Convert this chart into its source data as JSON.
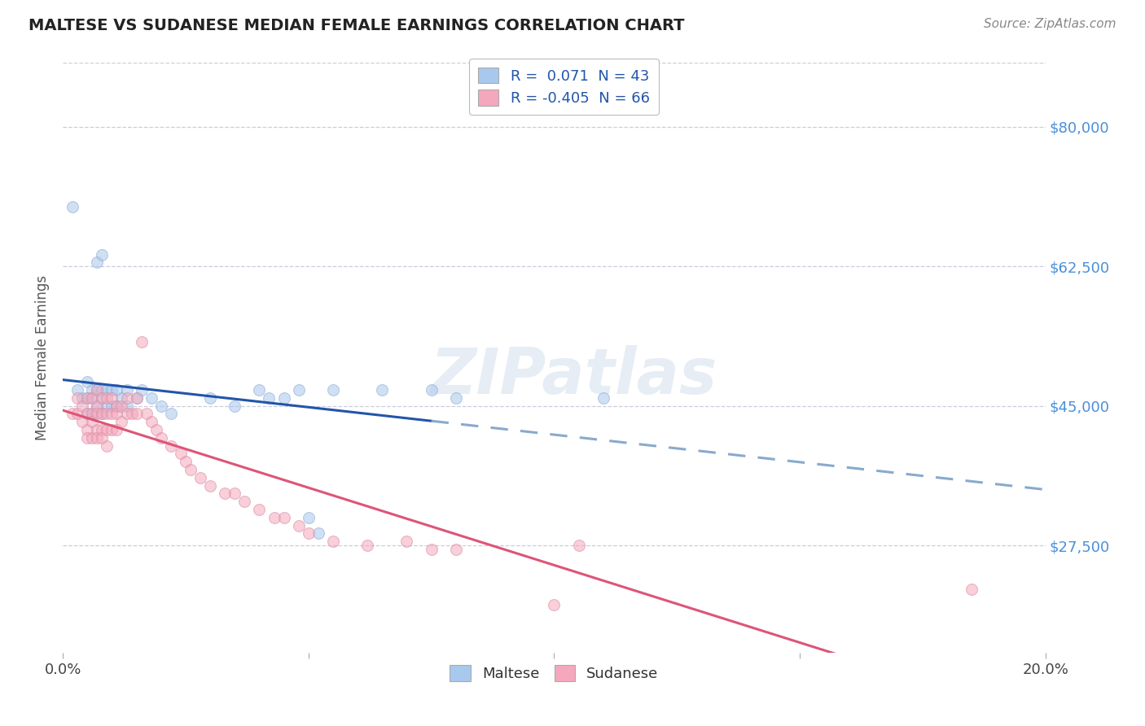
{
  "title": "MALTESE VS SUDANESE MEDIAN FEMALE EARNINGS CORRELATION CHART",
  "source": "Source: ZipAtlas.com",
  "ylabel": "Median Female Earnings",
  "xlim": [
    0.0,
    0.2
  ],
  "ylim": [
    14000,
    88000
  ],
  "yticks": [
    27500,
    45000,
    62500,
    80000
  ],
  "ytick_labels": [
    "$27,500",
    "$45,000",
    "$62,500",
    "$80,000"
  ],
  "xticks": [
    0.0,
    0.05,
    0.1,
    0.15,
    0.2
  ],
  "xtick_labels": [
    "0.0%",
    "",
    "",
    "",
    "20.0%"
  ],
  "watermark": "ZIPatlas",
  "background_color": "#ffffff",
  "grid_color": "#ccccdd",
  "ytick_color": "#4a90d9",
  "maltese_color": "#a8c8ee",
  "maltese_edge": "#88aad0",
  "sudanese_color": "#f5a8bc",
  "sudanese_edge": "#d888a0",
  "maltese_line_color": "#2255aa",
  "maltese_dash_color": "#88aacc",
  "sudanese_line_color": "#dd5577",
  "trend_linewidth": 2.2,
  "scatter_size": 100,
  "scatter_alpha": 0.55,
  "maltese_x": [
    0.002,
    0.003,
    0.004,
    0.005,
    0.005,
    0.005,
    0.006,
    0.006,
    0.006,
    0.007,
    0.007,
    0.007,
    0.008,
    0.008,
    0.008,
    0.008,
    0.009,
    0.009,
    0.01,
    0.01,
    0.011,
    0.011,
    0.012,
    0.013,
    0.013,
    0.015,
    0.016,
    0.018,
    0.02,
    0.022,
    0.03,
    0.035,
    0.04,
    0.042,
    0.045,
    0.048,
    0.05,
    0.052,
    0.055,
    0.065,
    0.075,
    0.08,
    0.11
  ],
  "maltese_y": [
    70000,
    47000,
    46000,
    48000,
    46000,
    44000,
    47000,
    46000,
    44000,
    63000,
    47000,
    45000,
    64000,
    47000,
    46000,
    44000,
    47000,
    45000,
    47000,
    45000,
    47000,
    45000,
    46000,
    47000,
    45000,
    46000,
    47000,
    46000,
    45000,
    44000,
    46000,
    45000,
    47000,
    46000,
    46000,
    47000,
    31000,
    29000,
    47000,
    47000,
    47000,
    46000,
    46000
  ],
  "sudanese_x": [
    0.002,
    0.003,
    0.003,
    0.004,
    0.004,
    0.005,
    0.005,
    0.005,
    0.005,
    0.006,
    0.006,
    0.006,
    0.006,
    0.007,
    0.007,
    0.007,
    0.007,
    0.007,
    0.008,
    0.008,
    0.008,
    0.008,
    0.009,
    0.009,
    0.009,
    0.009,
    0.01,
    0.01,
    0.01,
    0.011,
    0.011,
    0.011,
    0.012,
    0.012,
    0.013,
    0.013,
    0.014,
    0.015,
    0.015,
    0.016,
    0.017,
    0.018,
    0.019,
    0.02,
    0.022,
    0.024,
    0.025,
    0.026,
    0.028,
    0.03,
    0.033,
    0.035,
    0.037,
    0.04,
    0.043,
    0.045,
    0.048,
    0.05,
    0.055,
    0.062,
    0.07,
    0.075,
    0.08,
    0.1,
    0.105,
    0.185
  ],
  "sudanese_y": [
    44000,
    46000,
    44000,
    45000,
    43000,
    46000,
    44000,
    42000,
    41000,
    46000,
    44000,
    43000,
    41000,
    47000,
    45000,
    44000,
    42000,
    41000,
    46000,
    44000,
    42000,
    41000,
    46000,
    44000,
    42000,
    40000,
    46000,
    44000,
    42000,
    45000,
    44000,
    42000,
    45000,
    43000,
    46000,
    44000,
    44000,
    46000,
    44000,
    53000,
    44000,
    43000,
    42000,
    41000,
    40000,
    39000,
    38000,
    37000,
    36000,
    35000,
    34000,
    34000,
    33000,
    32000,
    31000,
    31000,
    30000,
    29000,
    28000,
    27500,
    28000,
    27000,
    27000,
    20000,
    27500,
    22000
  ]
}
